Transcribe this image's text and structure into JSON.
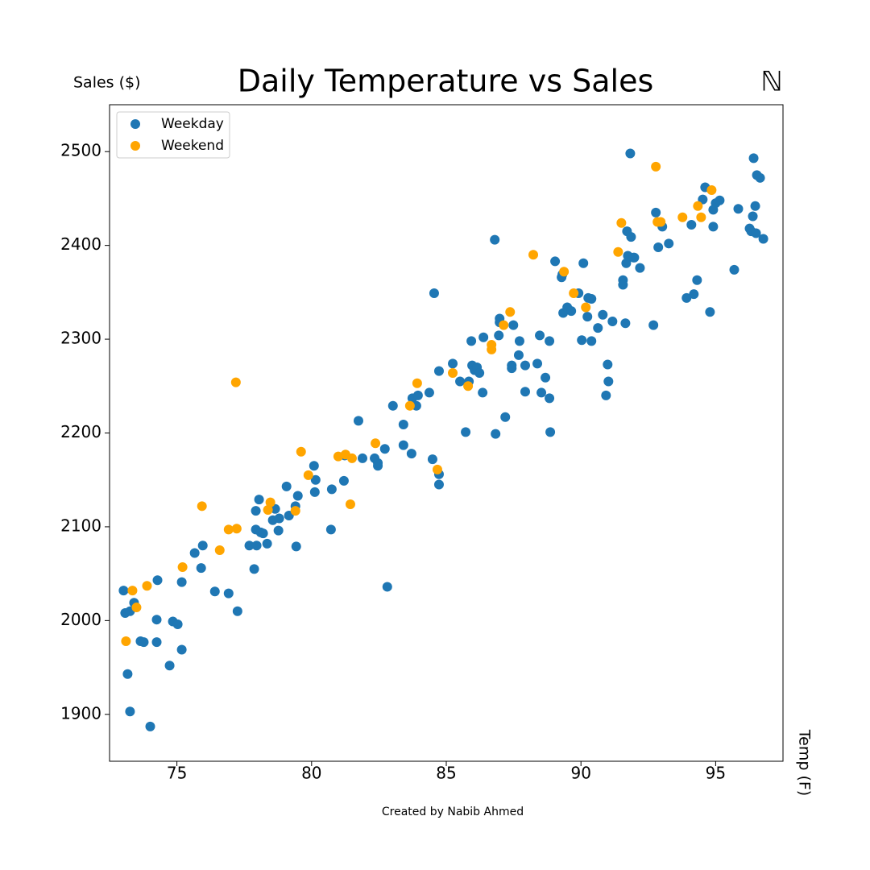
{
  "chart_data": {
    "type": "scatter",
    "title": "Daily Temperature vs Sales",
    "y_label": "Sales ($)",
    "x_label": "Temp (F)",
    "caption": "Created by Nabib Ahmed",
    "logo": "ℕ",
    "xlim": [
      72.5,
      97.5
    ],
    "ylim": [
      1850,
      2550
    ],
    "xticks": [
      75,
      80,
      85,
      90,
      95
    ],
    "yticks": [
      1900,
      2000,
      2100,
      2200,
      2300,
      2400,
      2500
    ],
    "grid": false,
    "legend": "upper left",
    "series": [
      {
        "name": "Weekday",
        "color": "#1f77b4",
        "x": [
          73.02,
          73.08,
          73.26,
          73.41,
          73.17,
          73.26,
          73.65,
          73.77,
          74.01,
          74.28,
          74.25,
          74.25,
          74.73,
          74.85,
          75.03,
          75.18,
          75.18,
          75.66,
          75.9,
          75.96,
          76.41,
          76.92,
          77.25,
          77.69,
          77.87,
          77.93,
          77.93,
          77.96,
          78.05,
          78.11,
          78.2,
          78.35,
          78.56,
          78.65,
          78.77,
          78.8,
          79.07,
          79.16,
          79.4,
          79.43,
          79.49,
          80.09,
          80.12,
          80.15,
          80.72,
          80.75,
          81.2,
          81.23,
          81.74,
          81.89,
          82.34,
          82.46,
          82.46,
          82.72,
          82.81,
          83.02,
          83.41,
          83.41,
          83.71,
          83.74,
          83.89,
          83.95,
          84.37,
          84.49,
          84.55,
          84.73,
          84.73,
          84.73,
          85.24,
          85.51,
          85.72,
          85.84,
          85.93,
          85.96,
          86.05,
          86.14,
          86.23,
          86.35,
          86.38,
          86.8,
          86.83,
          86.95,
          86.98,
          86.98,
          87.19,
          87.43,
          87.43,
          87.49,
          87.69,
          87.72,
          87.93,
          87.93,
          88.47,
          88.53,
          88.68,
          88.83,
          88.83,
          88.86,
          88.38,
          89.04,
          89.28,
          89.31,
          89.34,
          89.49,
          89.64,
          89.91,
          90.03,
          90.09,
          90.24,
          90.27,
          90.39,
          90.39,
          90.63,
          90.81,
          90.93,
          90.99,
          91.02,
          91.17,
          91.56,
          91.56,
          91.65,
          91.68,
          91.71,
          91.74,
          91.83,
          91.86,
          91.95,
          91.98,
          92.19,
          92.69,
          92.78,
          92.87,
          93.02,
          93.26,
          93.92,
          94.1,
          94.19,
          94.31,
          94.52,
          94.61,
          94.79,
          94.91,
          94.91,
          95.0,
          95.15,
          95.69,
          95.84,
          96.26,
          96.32,
          96.38,
          96.41,
          96.47,
          96.5,
          96.53,
          96.65,
          96.77
        ],
        "values": [
          2032,
          2008,
          2010,
          2019,
          1943,
          1903,
          1978,
          1977,
          1887,
          2043,
          2001,
          1977,
          1952,
          1999,
          1996,
          1969,
          2041,
          2072,
          2056,
          2080,
          2031,
          2029,
          2010,
          2080,
          2055,
          2117,
          2097,
          2080,
          2129,
          2094,
          2093,
          2082,
          2107,
          2119,
          2096,
          2109,
          2143,
          2112,
          2122,
          2079,
          2133,
          2165,
          2137,
          2150,
          2097,
          2140,
          2149,
          2176,
          2213,
          2173,
          2173,
          2165,
          2168,
          2183,
          2036,
          2229,
          2209,
          2187,
          2178,
          2237,
          2229,
          2240,
          2243,
          2172,
          2349,
          2266,
          2156,
          2145,
          2274,
          2255,
          2201,
          2255,
          2298,
          2272,
          2267,
          2270,
          2264,
          2243,
          2302,
          2406,
          2199,
          2304,
          2322,
          2318,
          2217,
          2272,
          2269,
          2315,
          2283,
          2298,
          2244,
          2272,
          2304,
          2243,
          2259,
          2298,
          2237,
          2201,
          2274,
          2383,
          2366,
          2369,
          2328,
          2334,
          2330,
          2349,
          2299,
          2381,
          2324,
          2344,
          2343,
          2298,
          2312,
          2326,
          2240,
          2273,
          2255,
          2319,
          2363,
          2358,
          2317,
          2381,
          2415,
          2389,
          2498,
          2409,
          2387,
          2387,
          2376,
          2315,
          2435,
          2398,
          2420,
          2402,
          2344,
          2422,
          2348,
          2363,
          2449,
          2462,
          2329,
          2438,
          2420,
          2445,
          2448,
          2374,
          2439,
          2418,
          2415,
          2431,
          2493,
          2442,
          2413,
          2475,
          2472,
          2407
        ]
      },
      {
        "name": "Weekend",
        "color": "#ffa500",
        "x": [
          73.11,
          73.35,
          73.5,
          73.89,
          75.21,
          75.93,
          76.59,
          76.92,
          77.22,
          77.19,
          78.38,
          78.47,
          79.4,
          79.61,
          79.88,
          80.99,
          81.26,
          81.5,
          81.44,
          82.37,
          83.65,
          83.92,
          84.67,
          85.24,
          85.81,
          86.68,
          86.68,
          87.13,
          87.37,
          88.23,
          89.37,
          89.73,
          90.18,
          91.38,
          91.5,
          92.78,
          92.84,
          92.96,
          93.77,
          94.34,
          94.46,
          94.85
        ],
        "values": [
          1978,
          2032,
          2014,
          2037,
          2057,
          2122,
          2075,
          2097,
          2098,
          2254,
          2118,
          2126,
          2117,
          2180,
          2155,
          2175,
          2177,
          2173,
          2124,
          2189,
          2229,
          2253,
          2161,
          2264,
          2250,
          2294,
          2289,
          2315,
          2329,
          2390,
          2372,
          2349,
          2334,
          2393,
          2424,
          2484,
          2425,
          2425,
          2430,
          2442,
          2430,
          2459
        ]
      }
    ]
  }
}
